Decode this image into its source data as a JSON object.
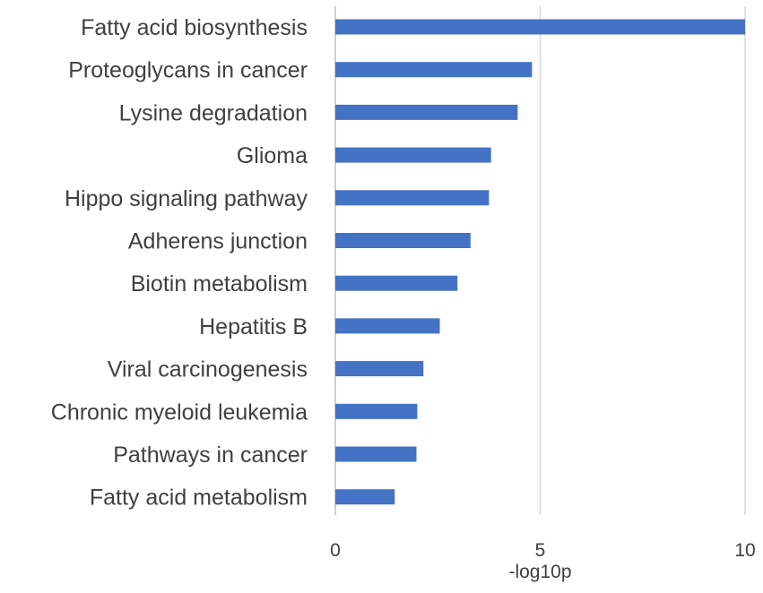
{
  "chart_data": {
    "type": "bar",
    "orientation": "horizontal",
    "categories": [
      "Fatty acid biosynthesis",
      "Proteoglycans in cancer",
      "Lysine degradation",
      "Glioma",
      "Hippo signaling pathway",
      "Adherens junction",
      "Biotin metabolism",
      "Hepatitis B",
      "Viral carcinogenesis",
      "Chronic myeloid leukemia",
      "Pathways in cancer",
      "Fatty acid metabolism"
    ],
    "values": [
      10.0,
      4.8,
      4.45,
      3.8,
      3.75,
      3.3,
      2.98,
      2.55,
      2.15,
      2.0,
      1.98,
      1.45
    ],
    "xlabel": "-log10p",
    "ylabel": "",
    "title": "",
    "xlim": [
      0,
      10
    ],
    "xticks": [
      0,
      5,
      10
    ],
    "xtick_labels": [
      "0",
      "5",
      "10"
    ],
    "grid": "vertical",
    "legend": "none",
    "bar_color": "#4472C4",
    "grid_color": "#D9D9D9"
  }
}
